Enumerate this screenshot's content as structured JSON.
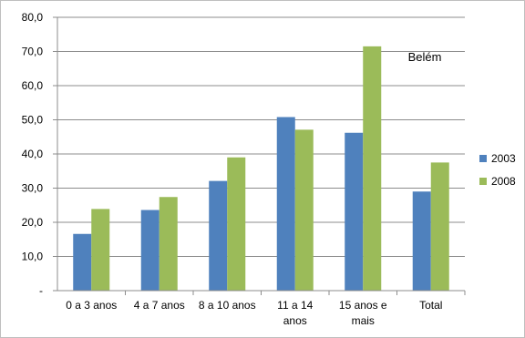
{
  "chart_data": {
    "type": "bar",
    "title": "",
    "xlabel": "",
    "ylabel": "",
    "annotation": "Belém",
    "categories": [
      [
        "0 a 3 anos"
      ],
      [
        "4 a 7 anos"
      ],
      [
        "8 a 10 anos"
      ],
      [
        "11 a 14",
        "anos"
      ],
      [
        "15 anos e",
        "mais"
      ],
      [
        "Total"
      ]
    ],
    "series": [
      {
        "name": "2003",
        "color": "#4f81bd",
        "values": [
          16.6,
          23.6,
          32.1,
          50.8,
          46.2,
          29.0
        ]
      },
      {
        "name": "2008",
        "color": "#9bbb59",
        "values": [
          23.9,
          27.4,
          39.0,
          47.1,
          71.5,
          37.5
        ]
      }
    ],
    "ylim": [
      0,
      80
    ],
    "yticks": [
      0,
      10,
      20,
      30,
      40,
      50,
      60,
      70,
      80
    ],
    "ytick_labels": [
      "-",
      "10,0",
      "20,0",
      "30,0",
      "40,0",
      "50,0",
      "60,0",
      "70,0",
      "80,0"
    ],
    "grid": true,
    "legend_position": "right"
  }
}
